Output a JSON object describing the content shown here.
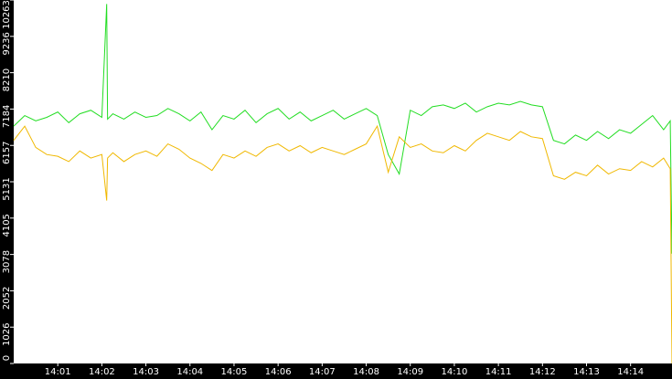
{
  "chart_data": {
    "type": "line",
    "x": [
      0,
      0.25,
      0.5,
      0.75,
      1,
      1.25,
      1.5,
      1.75,
      2,
      2.11,
      2.13,
      2.25,
      2.5,
      2.75,
      3,
      3.25,
      3.5,
      3.75,
      4,
      4.25,
      4.5,
      4.75,
      5,
      5.25,
      5.5,
      5.75,
      6,
      6.25,
      6.5,
      6.75,
      7,
      7.25,
      7.5,
      7.75,
      8,
      8.25,
      8.5,
      8.75,
      9,
      9.25,
      9.5,
      9.75,
      10,
      10.25,
      10.5,
      10.75,
      11,
      11.25,
      11.5,
      11.75,
      12,
      12.25,
      12.5,
      12.75,
      13,
      13.25,
      13.5,
      13.75,
      14,
      14.25,
      14.5,
      14.75,
      14.9,
      14.94
    ],
    "series": [
      {
        "color": "#22dd22",
        "values": [
          6700,
          7000,
          6850,
          6950,
          7100,
          6800,
          7050,
          7150,
          6950,
          10150,
          6900,
          7050,
          6900,
          7100,
          6950,
          7000,
          7200,
          7050,
          6850,
          7100,
          6600,
          7000,
          6900,
          7150,
          6800,
          7050,
          7200,
          6900,
          7100,
          6850,
          7000,
          7150,
          6900,
          7050,
          7200,
          7000,
          5900,
          5350,
          7150,
          7000,
          7250,
          7300,
          7200,
          7350,
          7100,
          7250,
          7350,
          7300,
          7400,
          7300,
          7250,
          6300,
          6200,
          6450,
          6300,
          6550,
          6350,
          6600,
          6500,
          6750,
          7000,
          6600,
          6850,
          3100
        ]
      },
      {
        "color": "#f0b800",
        "values": [
          6300,
          6700,
          6100,
          5900,
          5850,
          5700,
          6000,
          5800,
          5900,
          4600,
          5800,
          5950,
          5700,
          5900,
          6000,
          5850,
          6200,
          6050,
          5800,
          5650,
          5450,
          5900,
          5800,
          6000,
          5850,
          6100,
          6200,
          6000,
          6150,
          5950,
          6100,
          6000,
          5900,
          6050,
          6200,
          6700,
          5400,
          6400,
          6100,
          6200,
          6000,
          5950,
          6150,
          6000,
          6300,
          6500,
          6400,
          6300,
          6550,
          6400,
          6350,
          5300,
          5200,
          5400,
          5300,
          5600,
          5350,
          5500,
          5450,
          5700,
          5550,
          5800,
          5500,
          0
        ]
      }
    ],
    "xlim": [
      0,
      14.94
    ],
    "ylim": [
      0,
      10263
    ],
    "yticks": [
      0,
      1026,
      2052,
      3078,
      4105,
      5131,
      6157,
      7184,
      8210,
      9236,
      10263
    ],
    "xticks": [
      {
        "value": 1,
        "label": "14:01"
      },
      {
        "value": 2,
        "label": "14:02"
      },
      {
        "value": 3,
        "label": "14:03"
      },
      {
        "value": 4,
        "label": "14:04"
      },
      {
        "value": 5,
        "label": "14:05"
      },
      {
        "value": 6,
        "label": "14:06"
      },
      {
        "value": 7,
        "label": "14:07"
      },
      {
        "value": 8,
        "label": "14:08"
      },
      {
        "value": 9,
        "label": "14:09"
      },
      {
        "value": 10,
        "label": "14:10"
      },
      {
        "value": 11,
        "label": "14:11"
      },
      {
        "value": 12,
        "label": "14:12"
      },
      {
        "value": 13,
        "label": "14:13"
      },
      {
        "value": 14,
        "label": "14:14"
      }
    ]
  }
}
